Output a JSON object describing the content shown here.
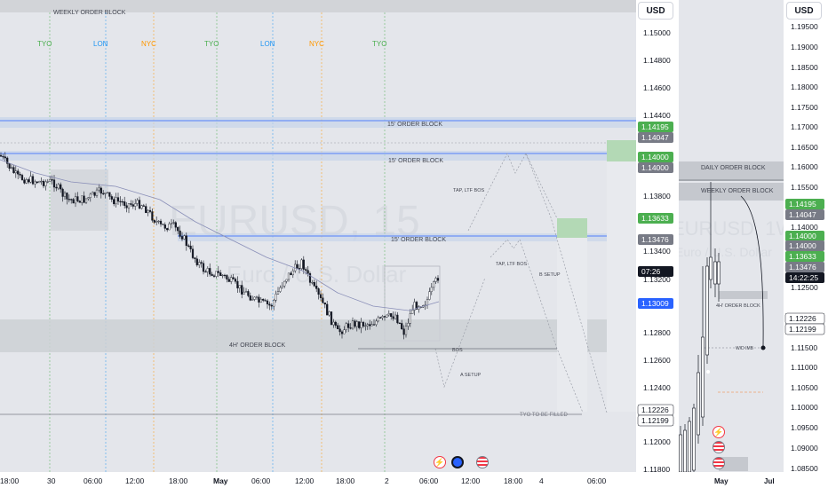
{
  "left": {
    "currency_label": "USD",
    "watermark": {
      "symbol": "EURUSD, 15",
      "description": "Euro / U.S. Dollar"
    },
    "sessions": [
      "TYO",
      "LON",
      "NYC",
      "TYO",
      "LON",
      "NYC",
      "TYO"
    ],
    "zones": {
      "weekly": "WEEKLY ORDER BLOCK",
      "ob15_upper": "15' ORDER BLOCK",
      "ob15_mid": "15' ORDER BLOCK",
      "ob15_low": "15' ORDER BLOCK",
      "ob4h": "4H' ORDER BLOCK",
      "tyo_filled": "TYO TO BE  FILLED"
    },
    "annotations": [
      "TAP, LTF BOS",
      "TAP, LTF BOS",
      "B SETUP",
      "BOS",
      "A SETUP"
    ],
    "y_ticks": [
      "1.15000",
      "1.14800",
      "1.14600",
      "1.14400",
      "1.13800",
      "1.13400",
      "1.13200",
      "1.12800",
      "1.12600",
      "1.12400",
      "1.12000",
      "1.11800"
    ],
    "price_tags": [
      {
        "text": "1.14195",
        "bg": "#4caf50"
      },
      {
        "text": "1.14047",
        "bg": "#787b86"
      },
      {
        "text": "1.14000",
        "bg": "#4caf50"
      },
      {
        "text": "1.14000",
        "bg": "#787b86"
      },
      {
        "text": "1.13633",
        "bg": "#4caf50"
      },
      {
        "text": "1.13476",
        "bg": "#787b86"
      },
      {
        "text": "07:26",
        "bg": "#131722"
      },
      {
        "text": "1.13009",
        "bg": "#2962ff"
      },
      {
        "text": "1.12226",
        "bg": "#ffffff"
      },
      {
        "text": "1.12199",
        "bg": "#ffffff"
      }
    ],
    "x_ticks": [
      "18:00",
      "30",
      "06:00",
      "12:00",
      "18:00",
      "May",
      "06:00",
      "12:00",
      "18:00",
      "2",
      "06:00",
      "12:00",
      "18:00",
      "4",
      "06:00"
    ]
  },
  "right": {
    "currency_label": "USD",
    "watermark": {
      "symbol": "EURUSD, 1W",
      "description": "Euro / U.S. Dollar"
    },
    "zones": {
      "daily": "DAILY ORDER BLOCK",
      "weekly": "WEEKLY ORDER BLOCK",
      "ob4h": "4H' ORDER BLOCK",
      "wd_imb": "W/D IMB"
    },
    "y_ticks": [
      "1.19500",
      "1.19000",
      "1.18500",
      "1.18000",
      "1.17500",
      "1.17000",
      "1.16500",
      "1.16000",
      "1.15500",
      "1.14000",
      "1.12500",
      "1.11500",
      "1.11000",
      "1.10500",
      "1.10000",
      "1.09500",
      "1.09000",
      "1.08500"
    ],
    "price_tags": [
      {
        "text": "1.14195",
        "bg": "#4caf50"
      },
      {
        "text": "1.14047",
        "bg": "#787b86"
      },
      {
        "text": "1.14000",
        "bg": "#4caf50"
      },
      {
        "text": "1.14000",
        "bg": "#787b86"
      },
      {
        "text": "1.13633",
        "bg": "#4caf50"
      },
      {
        "text": "1.13476",
        "bg": "#787b86"
      },
      {
        "text": "14:22:25",
        "bg": "#131722"
      },
      {
        "text": "1.12226",
        "bg": "#ffffff"
      },
      {
        "text": "1.12199",
        "bg": "#ffffff"
      }
    ],
    "x_ticks": [
      "May",
      "Jul"
    ]
  },
  "chart_data": [
    {
      "type": "candlestick",
      "symbol": "EURUSD",
      "timeframe": "15",
      "ylim": [
        1.118,
        1.152
      ],
      "x": [
        "18:00",
        "30",
        "06:00",
        "12:00",
        "18:00",
        "May",
        "06:00",
        "12:00",
        "18:00",
        "2",
        "06:00"
      ],
      "close_approx": [
        1.138,
        1.139,
        1.1375,
        1.1372,
        1.1355,
        1.132,
        1.131,
        1.129,
        1.1295,
        1.129,
        1.132
      ],
      "last_price": 1.13009,
      "levels": [
        1.14195,
        1.14047,
        1.14,
        1.13633,
        1.13476,
        1.12226,
        1.12199
      ]
    },
    {
      "type": "candlestick",
      "symbol": "EURUSD",
      "timeframe": "1W",
      "ylim": [
        1.0835,
        1.2
      ]
    }
  ]
}
